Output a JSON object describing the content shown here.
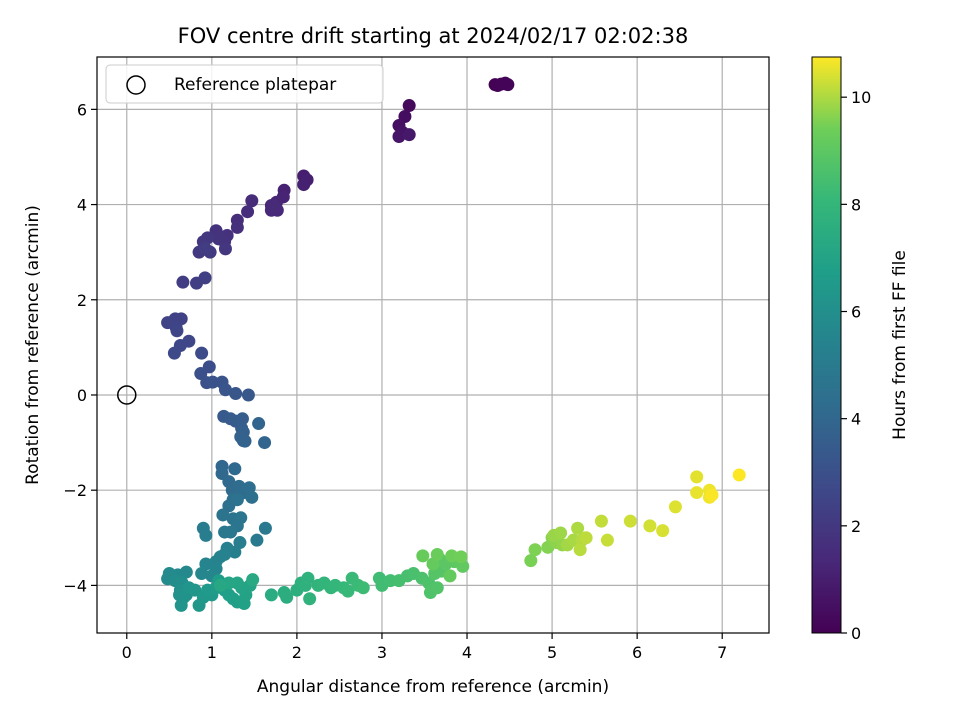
{
  "chart_data": {
    "type": "scatter",
    "title": "FOV centre drift starting at 2024/02/17 02:02:38",
    "xlabel": "Angular distance from reference (arcmin)",
    "ylabel": "Rotation from reference (arcmin)",
    "xlim": [
      -0.35,
      7.55
    ],
    "ylim": [
      -5.0,
      7.1
    ],
    "xticks": [
      0,
      1,
      2,
      3,
      4,
      5,
      6,
      7
    ],
    "xtick_labels": [
      "0",
      "1",
      "2",
      "3",
      "4",
      "5",
      "6",
      "7"
    ],
    "yticks": [
      -4,
      -2,
      0,
      2,
      4,
      6
    ],
    "ytick_labels": [
      "−4",
      "−2",
      "0",
      "2",
      "4",
      "6"
    ],
    "grid": true,
    "legend": {
      "placement": "top-left",
      "entries": [
        "Reference platepar"
      ]
    },
    "reference_point": {
      "x": 0,
      "y": 0
    },
    "colorbar": {
      "label": "Hours from first FF file",
      "colormap": "viridis",
      "range": [
        0,
        10.75
      ],
      "ticks": [
        0,
        2,
        4,
        6,
        8,
        10
      ],
      "tick_labels": [
        "0",
        "2",
        "4",
        "6",
        "8",
        "10"
      ]
    },
    "points": [
      [
        4.33,
        6.52,
        0.02
      ],
      [
        4.36,
        6.5,
        0.05
      ],
      [
        4.4,
        6.53,
        0.08
      ],
      [
        4.45,
        6.55,
        0.11
      ],
      [
        4.48,
        6.52,
        0.14
      ],
      [
        3.32,
        6.08,
        0.3
      ],
      [
        3.27,
        5.85,
        0.4
      ],
      [
        3.2,
        5.66,
        0.5
      ],
      [
        3.24,
        5.52,
        0.6
      ],
      [
        3.2,
        5.43,
        0.7
      ],
      [
        3.32,
        5.47,
        0.8
      ],
      [
        2.08,
        4.6,
        1.0
      ],
      [
        2.12,
        4.52,
        1.05
      ],
      [
        2.08,
        4.42,
        1.1
      ],
      [
        1.85,
        4.3,
        1.15
      ],
      [
        1.84,
        4.16,
        1.2
      ],
      [
        1.76,
        4.05,
        1.25
      ],
      [
        1.7,
        3.98,
        1.3
      ],
      [
        1.7,
        3.88,
        1.35
      ],
      [
        1.77,
        3.88,
        1.4
      ],
      [
        1.73,
        3.98,
        1.45
      ],
      [
        1.47,
        4.08,
        1.5
      ],
      [
        1.42,
        3.85,
        1.55
      ],
      [
        1.3,
        3.67,
        1.6
      ],
      [
        1.3,
        3.52,
        1.65
      ],
      [
        1.18,
        3.35,
        1.7
      ],
      [
        1.05,
        3.45,
        1.75
      ],
      [
        1.15,
        3.22,
        1.8
      ],
      [
        1.08,
        3.28,
        1.85
      ],
      [
        1.16,
        3.07,
        1.9
      ],
      [
        0.95,
        3.3,
        1.95
      ],
      [
        0.9,
        3.22,
        2.0
      ],
      [
        0.85,
        3.0,
        2.05
      ],
      [
        0.98,
        3.0,
        2.1
      ],
      [
        0.92,
        3.08,
        2.15
      ],
      [
        0.66,
        2.37,
        2.2
      ],
      [
        0.82,
        2.35,
        2.25
      ],
      [
        0.92,
        2.46,
        2.3
      ],
      [
        0.64,
        1.6,
        2.35
      ],
      [
        0.57,
        1.6,
        2.4
      ],
      [
        0.48,
        1.52,
        2.45
      ],
      [
        0.58,
        1.42,
        2.5
      ],
      [
        0.59,
        1.35,
        2.55
      ],
      [
        0.73,
        1.13,
        2.6
      ],
      [
        0.63,
        1.04,
        2.65
      ],
      [
        0.56,
        0.88,
        2.7
      ],
      [
        0.88,
        0.88,
        2.8
      ],
      [
        0.97,
        0.59,
        2.9
      ],
      [
        0.87,
        0.45,
        3.0
      ],
      [
        0.94,
        0.26,
        3.05
      ],
      [
        1.01,
        0.27,
        3.1
      ],
      [
        1.12,
        0.27,
        3.15
      ],
      [
        1.16,
        0.11,
        3.2
      ],
      [
        1.28,
        0.03,
        3.25
      ],
      [
        1.43,
        0.0,
        3.3
      ],
      [
        1.14,
        -0.45,
        3.4
      ],
      [
        1.22,
        -0.5,
        3.45
      ],
      [
        1.28,
        -0.55,
        3.5
      ],
      [
        1.36,
        -0.5,
        3.55
      ],
      [
        1.35,
        -0.7,
        3.6
      ],
      [
        1.37,
        -0.78,
        3.65
      ],
      [
        1.37,
        -0.96,
        3.7
      ],
      [
        1.34,
        -0.88,
        3.75
      ],
      [
        1.39,
        -0.97,
        3.8
      ],
      [
        1.55,
        -0.6,
        3.85
      ],
      [
        1.62,
        -1.0,
        3.9
      ],
      [
        1.12,
        -1.5,
        4.0
      ],
      [
        1.12,
        -1.65,
        4.05
      ],
      [
        1.27,
        -1.55,
        4.1
      ],
      [
        1.2,
        -1.82,
        4.15
      ],
      [
        1.24,
        -2.0,
        4.2
      ],
      [
        1.32,
        -1.92,
        4.25
      ],
      [
        1.38,
        -2.05,
        4.3
      ],
      [
        1.44,
        -1.95,
        4.35
      ],
      [
        1.47,
        -2.15,
        4.4
      ],
      [
        1.25,
        -2.2,
        4.45
      ],
      [
        1.2,
        -2.33,
        4.5
      ],
      [
        1.3,
        -2.2,
        4.55
      ],
      [
        1.13,
        -2.52,
        4.6
      ],
      [
        1.25,
        -2.6,
        4.65
      ],
      [
        1.34,
        -2.58,
        4.7
      ],
      [
        1.3,
        -2.75,
        4.75
      ],
      [
        1.22,
        -2.88,
        4.8
      ],
      [
        1.15,
        -2.88,
        4.85
      ],
      [
        1.63,
        -2.8,
        4.9
      ],
      [
        1.53,
        -3.05,
        4.95
      ],
      [
        0.9,
        -2.8,
        5.05
      ],
      [
        0.93,
        -2.95,
        5.1
      ],
      [
        1.33,
        -3.1,
        5.15
      ],
      [
        1.27,
        -3.3,
        5.2
      ],
      [
        1.18,
        -3.22,
        5.25
      ],
      [
        1.15,
        -3.35,
        5.3
      ],
      [
        1.1,
        -3.4,
        5.35
      ],
      [
        1.05,
        -3.5,
        5.4
      ],
      [
        0.93,
        -3.55,
        5.45
      ],
      [
        1.05,
        -3.65,
        5.5
      ],
      [
        1.0,
        -3.8,
        5.55
      ],
      [
        0.88,
        -3.75,
        5.6
      ],
      [
        0.7,
        -3.72,
        5.65
      ],
      [
        0.6,
        -3.78,
        5.7
      ],
      [
        0.5,
        -3.75,
        5.75
      ],
      [
        0.48,
        -3.86,
        5.8
      ],
      [
        0.57,
        -3.9,
        5.9
      ],
      [
        0.65,
        -3.95,
        6.0
      ],
      [
        0.63,
        -4.1,
        6.05
      ],
      [
        0.7,
        -4.2,
        6.1
      ],
      [
        0.62,
        -4.2,
        6.15
      ],
      [
        0.67,
        -4.25,
        6.2
      ],
      [
        0.64,
        -4.42,
        6.25
      ],
      [
        0.73,
        -4.05,
        6.3
      ],
      [
        0.8,
        -4.1,
        6.35
      ],
      [
        0.85,
        -4.42,
        6.4
      ],
      [
        0.9,
        -4.25,
        6.45
      ],
      [
        1.0,
        -4.2,
        6.5
      ],
      [
        0.95,
        -4.1,
        6.55
      ],
      [
        1.05,
        -4.05,
        6.6
      ],
      [
        1.08,
        -3.9,
        6.65
      ],
      [
        1.15,
        -4.1,
        6.7
      ],
      [
        1.2,
        -4.2,
        6.75
      ],
      [
        1.25,
        -4.28,
        6.8
      ],
      [
        1.3,
        -4.35,
        6.85
      ],
      [
        1.38,
        -4.38,
        6.9
      ],
      [
        1.4,
        -4.2,
        6.95
      ],
      [
        1.35,
        -4.05,
        7.0
      ],
      [
        1.45,
        -4.0,
        7.05
      ],
      [
        1.3,
        -3.95,
        7.1
      ],
      [
        1.2,
        -3.95,
        7.15
      ],
      [
        1.1,
        -4.0,
        7.2
      ],
      [
        1.48,
        -3.88,
        7.25
      ],
      [
        1.7,
        -4.2,
        7.4
      ],
      [
        1.85,
        -4.15,
        7.5
      ],
      [
        1.88,
        -4.25,
        7.55
      ],
      [
        2.0,
        -4.1,
        7.6
      ],
      [
        2.05,
        -3.95,
        7.65
      ],
      [
        2.1,
        -4.0,
        7.7
      ],
      [
        2.13,
        -3.85,
        7.75
      ],
      [
        2.15,
        -4.28,
        7.8
      ],
      [
        2.25,
        -4.0,
        7.85
      ],
      [
        2.32,
        -3.95,
        7.9
      ],
      [
        2.4,
        -4.05,
        7.95
      ],
      [
        2.45,
        -4.0,
        8.0
      ],
      [
        2.55,
        -4.05,
        8.05
      ],
      [
        2.6,
        -4.12,
        8.1
      ],
      [
        2.65,
        -3.85,
        8.15
      ],
      [
        2.72,
        -4.0,
        8.2
      ],
      [
        2.78,
        -4.05,
        8.25
      ],
      [
        2.97,
        -3.85,
        8.3
      ],
      [
        3.0,
        -4.0,
        8.35
      ],
      [
        3.1,
        -3.9,
        8.4
      ],
      [
        3.2,
        -3.9,
        8.45
      ],
      [
        3.3,
        -3.8,
        8.5
      ],
      [
        3.37,
        -3.75,
        8.55
      ],
      [
        3.47,
        -3.85,
        8.6
      ],
      [
        3.55,
        -3.95,
        8.65
      ],
      [
        3.57,
        -4.15,
        8.7
      ],
      [
        3.65,
        -4.05,
        8.75
      ],
      [
        3.62,
        -3.75,
        8.8
      ],
      [
        3.7,
        -3.7,
        8.85
      ],
      [
        3.68,
        -3.45,
        8.9
      ],
      [
        3.75,
        -3.55,
        8.95
      ],
      [
        3.85,
        -3.5,
        9.0
      ],
      [
        3.9,
        -3.45,
        9.05
      ],
      [
        3.95,
        -3.6,
        9.1
      ],
      [
        3.8,
        -3.8,
        9.15
      ],
      [
        3.6,
        -3.55,
        9.2
      ],
      [
        3.48,
        -3.38,
        9.25
      ],
      [
        3.65,
        -3.35,
        9.3
      ],
      [
        3.82,
        -3.38,
        9.35
      ],
      [
        3.93,
        -3.4,
        9.4
      ],
      [
        4.75,
        -3.48,
        9.5
      ],
      [
        4.8,
        -3.25,
        9.55
      ],
      [
        4.95,
        -3.2,
        9.6
      ],
      [
        5.0,
        -3.0,
        9.65
      ],
      [
        5.05,
        -3.1,
        9.7
      ],
      [
        5.12,
        -3.15,
        9.75
      ],
      [
        5.02,
        -2.95,
        9.8
      ],
      [
        5.1,
        -2.9,
        9.85
      ],
      [
        5.18,
        -3.15,
        9.9
      ],
      [
        5.25,
        -3.05,
        9.95
      ],
      [
        5.3,
        -2.8,
        10.0
      ],
      [
        5.35,
        -3.05,
        10.05
      ],
      [
        5.33,
        -3.25,
        10.1
      ],
      [
        5.4,
        -3.0,
        10.15
      ],
      [
        5.58,
        -2.65,
        10.2
      ],
      [
        5.65,
        -3.05,
        10.25
      ],
      [
        5.92,
        -2.65,
        10.3
      ],
      [
        6.15,
        -2.75,
        10.35
      ],
      [
        6.3,
        -2.85,
        10.4
      ],
      [
        6.45,
        -2.35,
        10.45
      ],
      [
        6.7,
        -1.72,
        10.5
      ],
      [
        6.7,
        -2.05,
        10.55
      ],
      [
        6.85,
        -2.0,
        10.6
      ],
      [
        6.85,
        -2.15,
        10.65
      ],
      [
        6.88,
        -2.1,
        10.7
      ],
      [
        7.2,
        -1.68,
        10.75
      ]
    ]
  }
}
